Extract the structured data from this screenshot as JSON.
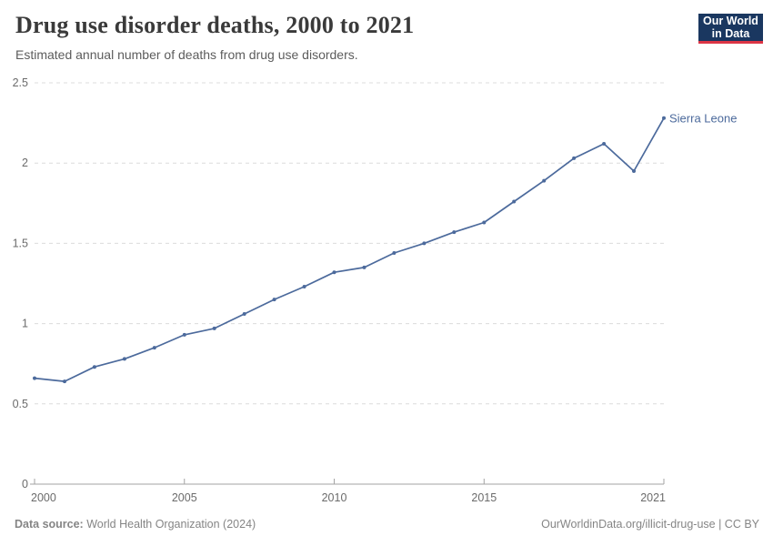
{
  "header": {
    "title": "Drug use disorder deaths, 2000 to 2021",
    "subtitle": "Estimated annual number of deaths from drug use disorders."
  },
  "logo": {
    "line1": "Our World",
    "line2": "in Data",
    "bg_color": "#1a3760",
    "stripe_color": "#dc3545"
  },
  "chart_data": {
    "type": "line",
    "title": "Drug use disorder deaths, 2000 to 2021",
    "xlabel": "",
    "ylabel": "",
    "xlim": [
      2000,
      2021
    ],
    "ylim": [
      0,
      2.5
    ],
    "x_ticks": [
      2000,
      2005,
      2010,
      2015,
      2021
    ],
    "y_ticks": [
      0,
      0.5,
      1,
      1.5,
      2,
      2.5
    ],
    "grid": "horizontal-dashed",
    "legend_position": "end-of-line-label",
    "x": [
      2000,
      2001,
      2002,
      2003,
      2004,
      2005,
      2006,
      2007,
      2008,
      2009,
      2010,
      2011,
      2012,
      2013,
      2014,
      2015,
      2016,
      2017,
      2018,
      2019,
      2020,
      2021
    ],
    "series": [
      {
        "name": "Sierra Leone",
        "color": "#4c6a9c",
        "values": [
          0.66,
          0.64,
          0.73,
          0.78,
          0.85,
          0.93,
          0.97,
          1.06,
          1.15,
          1.23,
          1.32,
          1.35,
          1.44,
          1.5,
          1.57,
          1.63,
          1.76,
          1.89,
          2.03,
          2.12,
          1.95,
          2.28
        ]
      }
    ]
  },
  "colors": {
    "grid": "#dcdcdc",
    "axis": "#a3a3a3",
    "tick_text": "#6b6b6b"
  },
  "footer": {
    "source_label": "Data source:",
    "source_value": "World Health Organization (2024)",
    "attribution": "OurWorldinData.org/illicit-drug-use | CC BY"
  }
}
